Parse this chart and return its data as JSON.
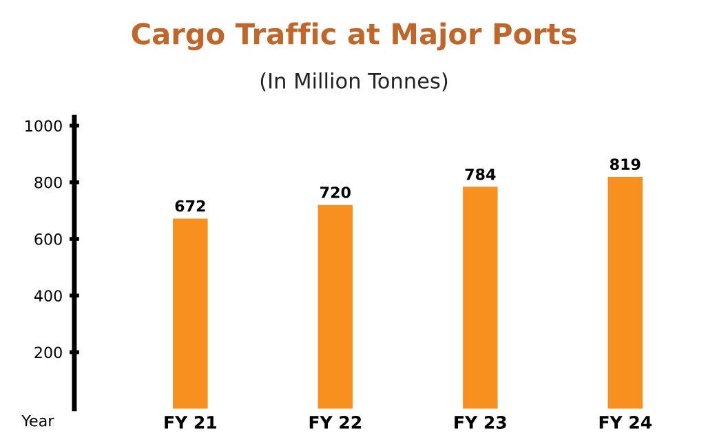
{
  "chart_data": {
    "type": "bar",
    "title": "Cargo Traffic at Major Ports",
    "subtitle": "(In Million Tonnes)",
    "xlabel": "Year",
    "categories": [
      "FY 21",
      "FY 22",
      "FY 23",
      "FY 24"
    ],
    "values": [
      672,
      720,
      784,
      819
    ],
    "color": "#f7901e",
    "ylim": [
      0,
      1030
    ],
    "yticks": [
      200,
      400,
      600,
      800,
      1000
    ],
    "grid": false,
    "data_labels": true
  }
}
